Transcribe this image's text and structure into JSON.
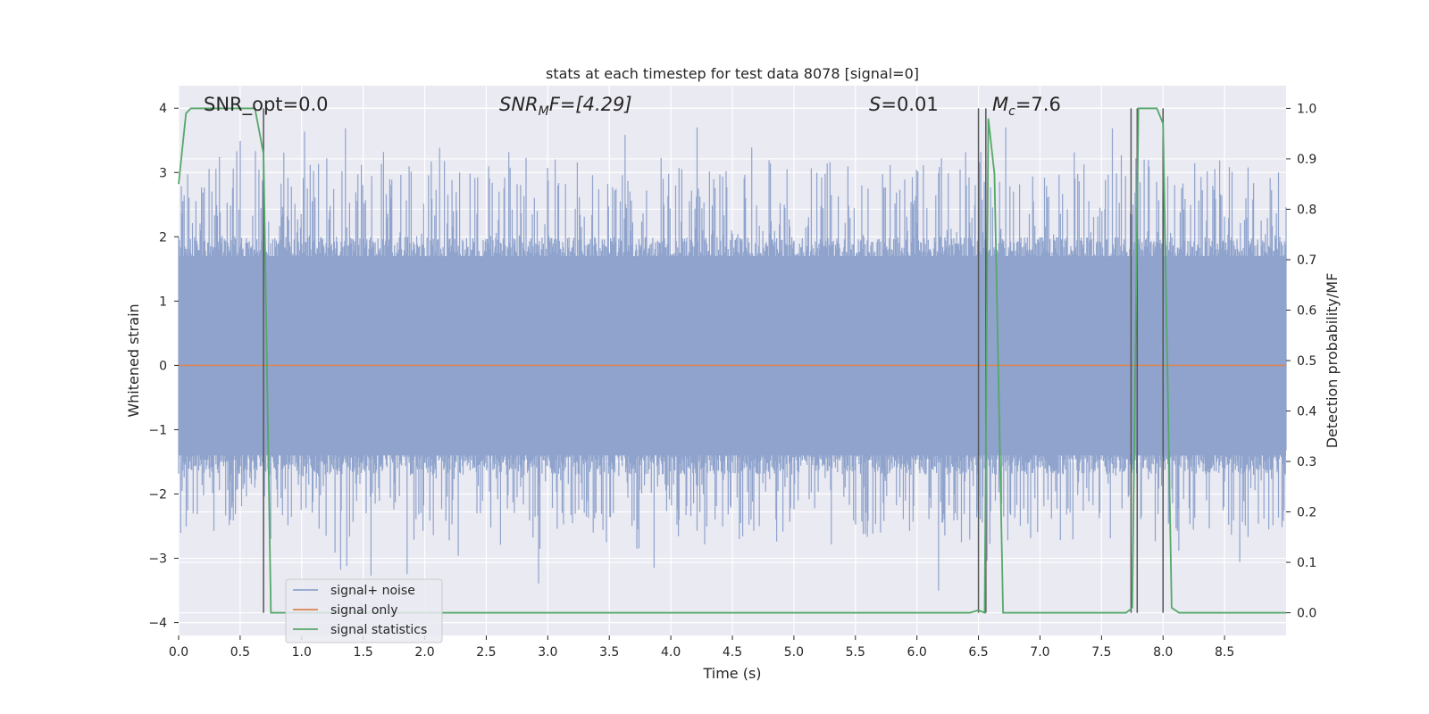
{
  "chart_data": {
    "type": "line",
    "title": "stats at each timestep for test data 8078 [signal=0]",
    "xlabel": "Time (s)",
    "ylabel_left": "Whitened strain",
    "ylabel_right": "Detection probability/MF",
    "xlim": [
      0.0,
      9.0
    ],
    "ylim_left": [
      -4.2,
      4.35
    ],
    "ylim_right": [
      -0.045,
      1.045
    ],
    "x_ticks": [
      "0.0",
      "0.5",
      "1.0",
      "1.5",
      "2.0",
      "2.5",
      "3.0",
      "3.5",
      "4.0",
      "4.5",
      "5.0",
      "5.5",
      "6.0",
      "6.5",
      "7.0",
      "7.5",
      "8.0",
      "8.5"
    ],
    "y_ticks_left": [
      "4",
      "3",
      "2",
      "1",
      "0",
      "−1",
      "−2",
      "−3",
      "−4"
    ],
    "y_ticks_right": [
      "1.0",
      "0.9",
      "0.8",
      "0.7",
      "0.6",
      "0.5",
      "0.4",
      "0.3",
      "0.2",
      "0.1",
      "0.0"
    ],
    "grid": true,
    "legend_placement": "lower-left",
    "annotations": {
      "snr_opt": "SNR_opt=0.0",
      "snr_mf_prefix": "SNR",
      "snr_mf_sub": "M",
      "snr_mf_suffix": "F=[4.29]",
      "s_prefix": "S",
      "s_suffix": "=0.01",
      "mc_prefix": "M",
      "mc_sub": "c",
      "mc_suffix": "=7.6"
    },
    "series": [
      {
        "name": "signal+ noise",
        "color": "#8fa3cc",
        "description": "whitened strain noise samples, approx. uniform band between -1.4 and 1.7 with spikes up to about 3.7 and down to -3.7"
      },
      {
        "name": "signal only",
        "color": "#dd8452",
        "x": [
          0.0,
          9.0
        ],
        "y": [
          0.0,
          0.0
        ]
      },
      {
        "name": "signal statistics",
        "color": "#55a868",
        "axis": "right",
        "x": [
          0.0,
          0.06,
          0.1,
          0.2,
          0.3,
          0.4,
          0.5,
          0.6,
          0.62,
          0.69,
          0.75,
          0.8,
          1.0,
          2.0,
          3.0,
          4.0,
          5.0,
          6.0,
          6.43,
          6.5,
          6.55,
          6.58,
          6.63,
          6.7,
          6.75,
          7.0,
          7.5,
          7.7,
          7.75,
          7.8,
          7.85,
          7.95,
          8.0,
          8.07,
          8.13,
          8.2,
          9.0
        ],
        "y": [
          0.85,
          0.99,
          1.0,
          1.0,
          1.0,
          1.0,
          1.0,
          1.0,
          1.0,
          0.91,
          0.0,
          0.0,
          0.0,
          0.0,
          0.0,
          0.0,
          0.0,
          0.0,
          0.0,
          0.005,
          0.0,
          0.98,
          0.87,
          0.0,
          0.0,
          0.0,
          0.0,
          0.0,
          0.01,
          1.0,
          1.0,
          1.0,
          0.97,
          0.01,
          0.0,
          0.0,
          0.0
        ]
      }
    ],
    "vertical_lines_x": [
      0.69,
      6.5,
      6.56,
      7.74,
      7.79,
      8.0
    ]
  }
}
